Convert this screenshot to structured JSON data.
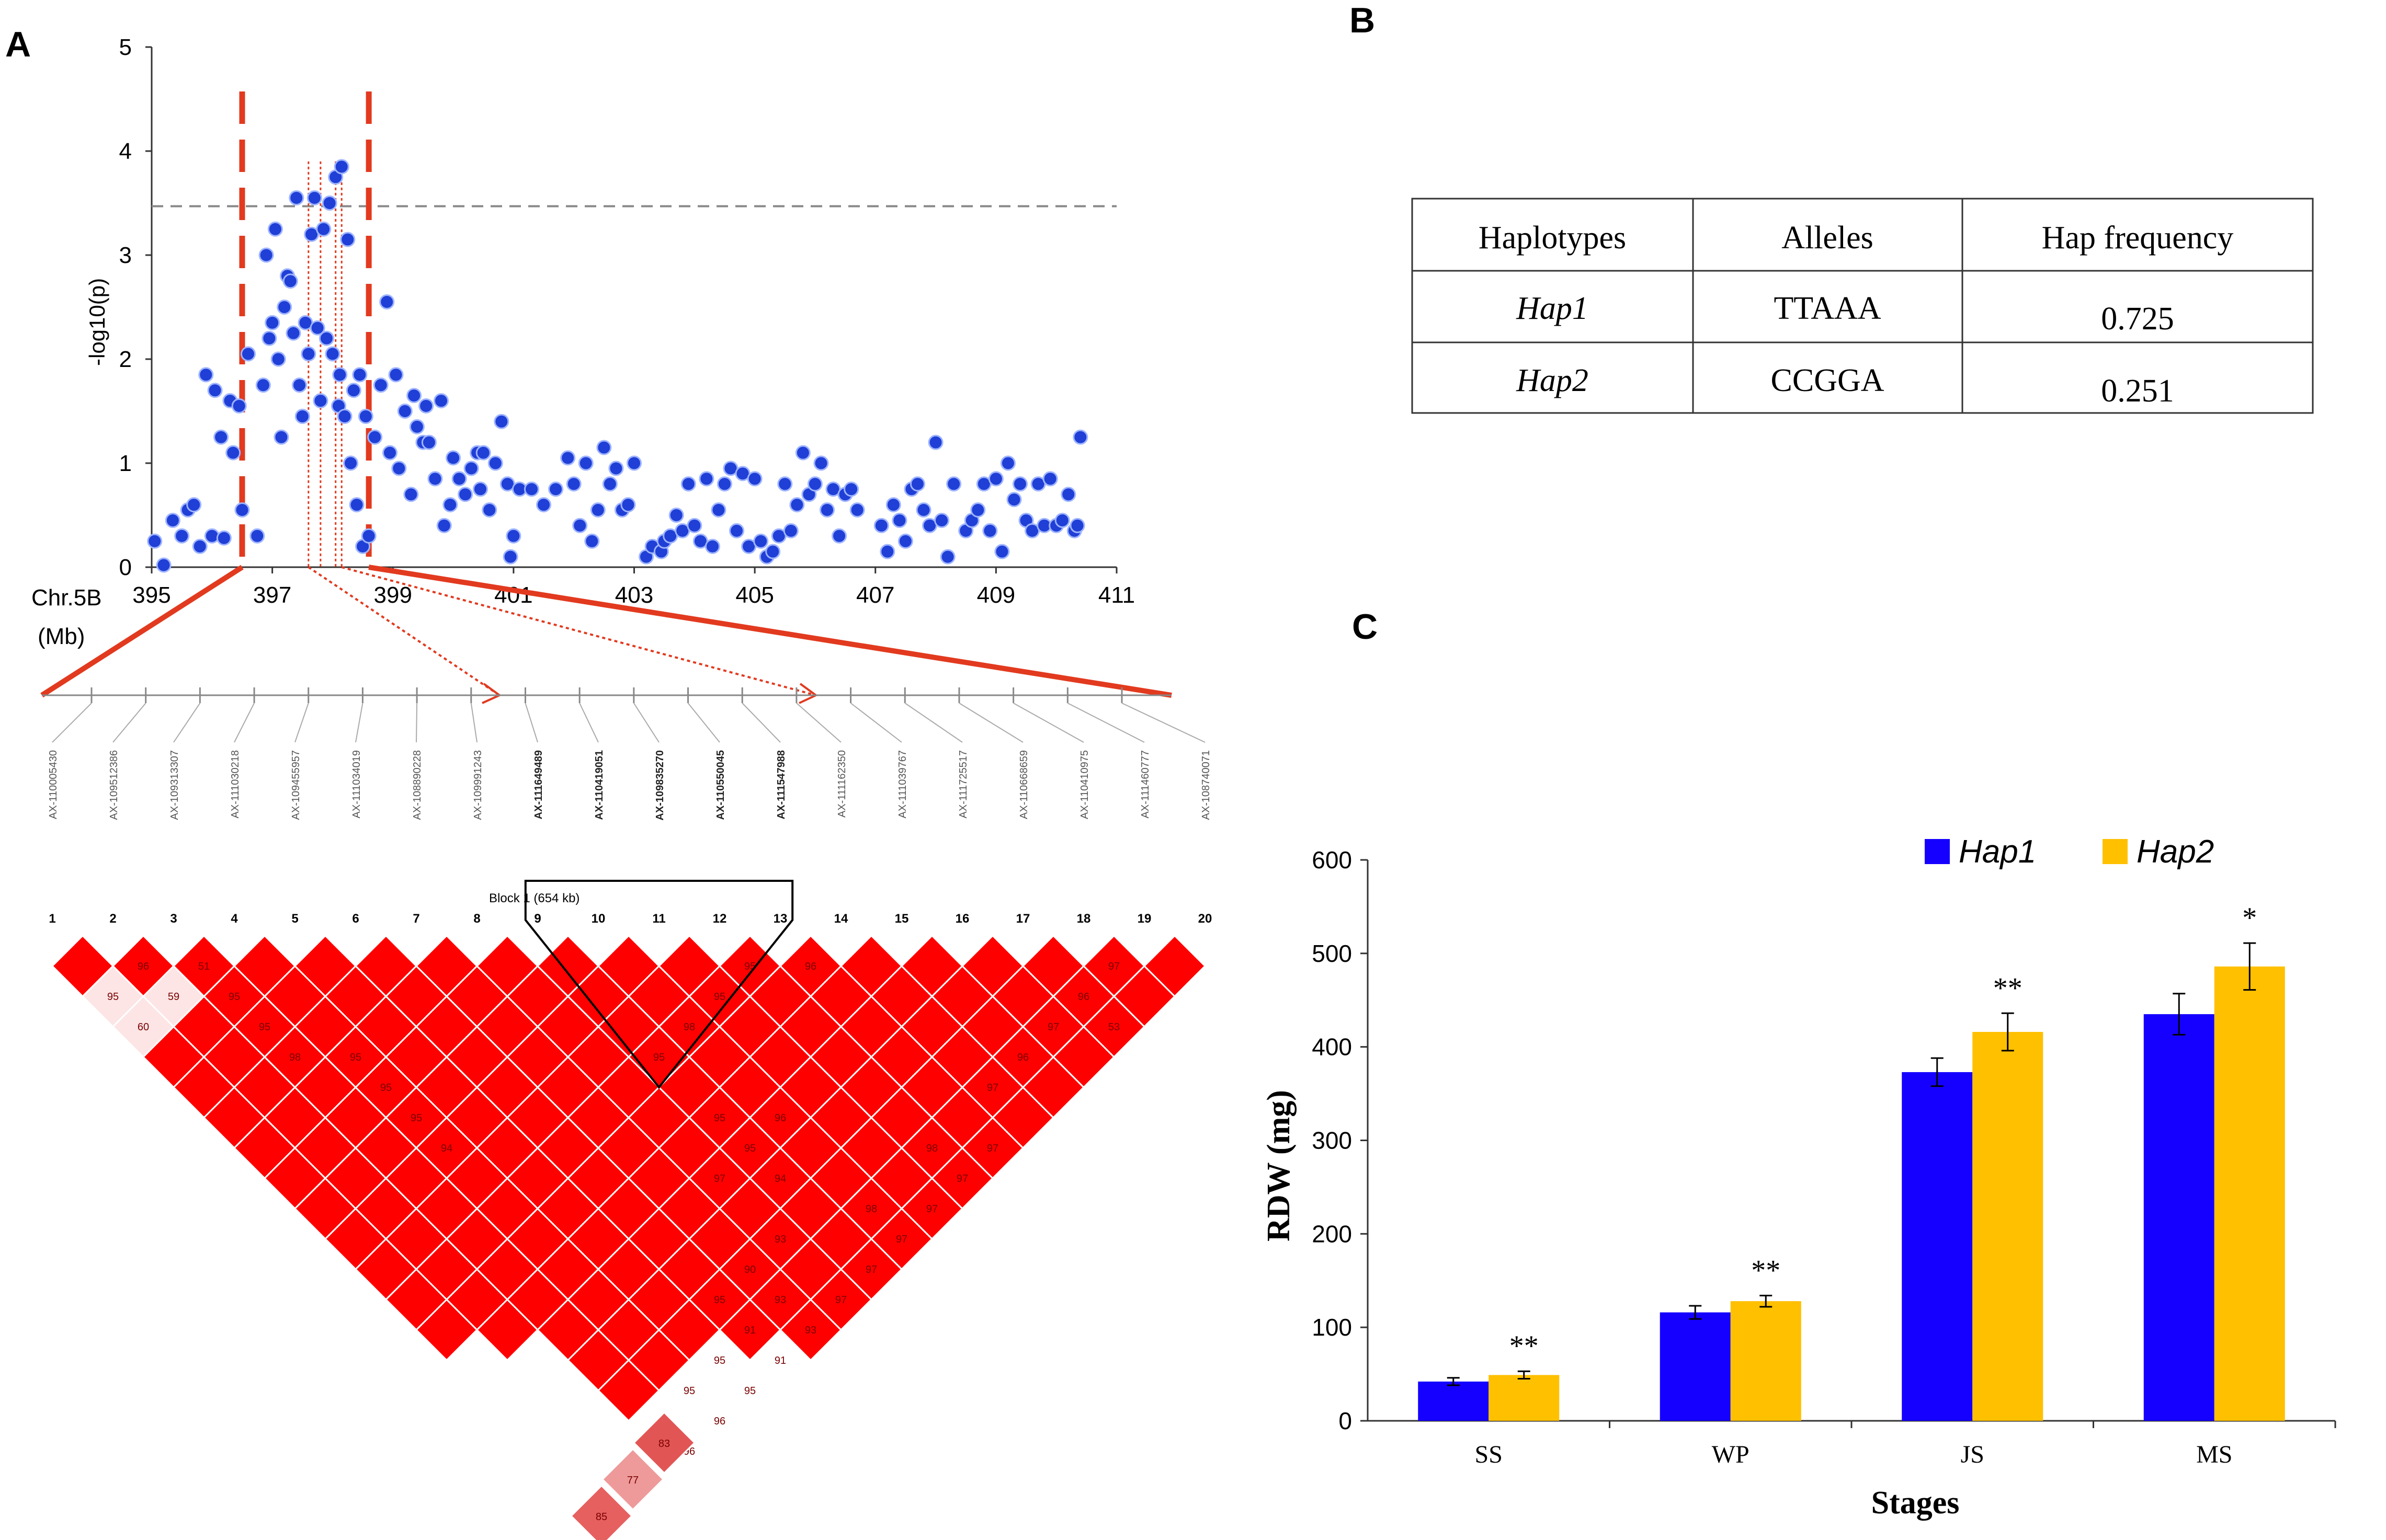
{
  "panels": {
    "a": "A",
    "b": "B",
    "c": "C"
  },
  "colors": {
    "point": "#1f3fd6",
    "red": "#e23a1f",
    "ld_red": "#ff0000",
    "hap1": "#1500ff",
    "hap2": "#ffc000",
    "threshold": "#888888"
  },
  "chart_data": [
    {
      "type": "scatter",
      "title": "",
      "xlabel": "Chr.5B",
      "xlabel_unit": "(Mb)",
      "ylabel": "-log10(p)",
      "xlim": [
        395,
        411
      ],
      "ylim": [
        0,
        5
      ],
      "xticks": [
        "395",
        "397",
        "399",
        "401",
        "403",
        "405",
        "407",
        "409",
        "411"
      ],
      "yticks": [
        "0",
        "1",
        "2",
        "3",
        "4",
        "5"
      ],
      "threshold": 3.47,
      "highlight_interval": [
        396.5,
        398.6
      ],
      "points": [
        [
          395.05,
          0.25
        ],
        [
          395.2,
          0.02
        ],
        [
          395.35,
          0.45
        ],
        [
          395.5,
          0.3
        ],
        [
          395.6,
          0.55
        ],
        [
          395.7,
          0.6
        ],
        [
          395.8,
          0.2
        ],
        [
          395.9,
          1.85
        ],
        [
          396.0,
          0.3
        ],
        [
          396.05,
          1.7
        ],
        [
          396.15,
          1.25
        ],
        [
          396.2,
          0.28
        ],
        [
          396.3,
          1.6
        ],
        [
          396.35,
          1.1
        ],
        [
          396.45,
          1.55
        ],
        [
          396.5,
          0.55
        ],
        [
          396.6,
          2.05
        ],
        [
          396.75,
          0.3
        ],
        [
          396.85,
          1.75
        ],
        [
          396.9,
          3.0
        ],
        [
          396.95,
          2.2
        ],
        [
          397.0,
          2.35
        ],
        [
          397.05,
          3.25
        ],
        [
          397.1,
          2.0
        ],
        [
          397.15,
          1.25
        ],
        [
          397.2,
          2.5
        ],
        [
          397.25,
          2.8
        ],
        [
          397.3,
          2.75
        ],
        [
          397.35,
          2.25
        ],
        [
          397.4,
          3.55
        ],
        [
          397.45,
          1.75
        ],
        [
          397.5,
          1.45
        ],
        [
          397.55,
          2.35
        ],
        [
          397.6,
          2.05
        ],
        [
          397.65,
          3.2
        ],
        [
          397.7,
          3.55
        ],
        [
          397.75,
          2.3
        ],
        [
          397.8,
          1.6
        ],
        [
          397.85,
          3.25
        ],
        [
          397.9,
          2.2
        ],
        [
          397.95,
          3.5
        ],
        [
          398.0,
          2.05
        ],
        [
          398.05,
          3.75
        ],
        [
          398.1,
          1.55
        ],
        [
          398.12,
          1.85
        ],
        [
          398.15,
          3.85
        ],
        [
          398.2,
          1.45
        ],
        [
          398.25,
          3.15
        ],
        [
          398.3,
          1.0
        ],
        [
          398.35,
          1.7
        ],
        [
          398.4,
          0.6
        ],
        [
          398.45,
          1.85
        ],
        [
          398.5,
          0.2
        ],
        [
          398.55,
          1.45
        ],
        [
          398.6,
          0.3
        ],
        [
          398.7,
          1.25
        ],
        [
          398.8,
          1.75
        ],
        [
          398.9,
          2.55
        ],
        [
          398.95,
          1.1
        ],
        [
          399.05,
          1.85
        ],
        [
          399.1,
          0.95
        ],
        [
          399.2,
          1.5
        ],
        [
          399.3,
          0.7
        ],
        [
          399.35,
          1.65
        ],
        [
          399.4,
          1.35
        ],
        [
          399.5,
          1.2
        ],
        [
          399.55,
          1.55
        ],
        [
          399.6,
          1.2
        ],
        [
          399.7,
          0.85
        ],
        [
          399.8,
          1.6
        ],
        [
          399.85,
          0.4
        ],
        [
          399.95,
          0.6
        ],
        [
          400.0,
          1.05
        ],
        [
          400.1,
          0.85
        ],
        [
          400.2,
          0.7
        ],
        [
          400.3,
          0.95
        ],
        [
          400.4,
          1.1
        ],
        [
          400.45,
          0.75
        ],
        [
          400.5,
          1.1
        ],
        [
          400.6,
          0.55
        ],
        [
          400.7,
          1.0
        ],
        [
          400.8,
          1.4
        ],
        [
          400.9,
          0.8
        ],
        [
          400.95,
          0.1
        ],
        [
          401.0,
          0.3
        ],
        [
          401.1,
          0.75
        ],
        [
          401.3,
          0.75
        ],
        [
          401.5,
          0.6
        ],
        [
          401.7,
          0.75
        ],
        [
          401.9,
          1.05
        ],
        [
          402.0,
          0.8
        ],
        [
          402.1,
          0.4
        ],
        [
          402.2,
          1.0
        ],
        [
          402.3,
          0.25
        ],
        [
          402.4,
          0.55
        ],
        [
          402.5,
          1.15
        ],
        [
          402.6,
          0.8
        ],
        [
          402.7,
          0.95
        ],
        [
          402.8,
          0.55
        ],
        [
          402.9,
          0.6
        ],
        [
          403.0,
          1.0
        ],
        [
          403.2,
          0.1
        ],
        [
          403.3,
          0.2
        ],
        [
          403.45,
          0.15
        ],
        [
          403.5,
          0.25
        ],
        [
          403.6,
          0.3
        ],
        [
          403.7,
          0.5
        ],
        [
          403.8,
          0.35
        ],
        [
          403.9,
          0.8
        ],
        [
          404.0,
          0.4
        ],
        [
          404.1,
          0.25
        ],
        [
          404.2,
          0.85
        ],
        [
          404.3,
          0.2
        ],
        [
          404.4,
          0.55
        ],
        [
          404.5,
          0.8
        ],
        [
          404.6,
          0.95
        ],
        [
          404.7,
          0.35
        ],
        [
          404.8,
          0.9
        ],
        [
          404.9,
          0.2
        ],
        [
          405.0,
          0.85
        ],
        [
          405.1,
          0.25
        ],
        [
          405.2,
          0.1
        ],
        [
          405.3,
          0.15
        ],
        [
          405.4,
          0.3
        ],
        [
          405.5,
          0.8
        ],
        [
          405.6,
          0.35
        ],
        [
          405.7,
          0.6
        ],
        [
          405.8,
          1.1
        ],
        [
          405.9,
          0.7
        ],
        [
          406.0,
          0.8
        ],
        [
          406.1,
          1.0
        ],
        [
          406.2,
          0.55
        ],
        [
          406.3,
          0.75
        ],
        [
          406.4,
          0.3
        ],
        [
          406.5,
          0.7
        ],
        [
          406.6,
          0.75
        ],
        [
          406.7,
          0.55
        ],
        [
          407.1,
          0.4
        ],
        [
          407.2,
          0.15
        ],
        [
          407.3,
          0.6
        ],
        [
          407.4,
          0.45
        ],
        [
          407.5,
          0.25
        ],
        [
          407.6,
          0.75
        ],
        [
          407.7,
          0.8
        ],
        [
          407.8,
          0.55
        ],
        [
          407.9,
          0.4
        ],
        [
          408.0,
          1.2
        ],
        [
          408.1,
          0.45
        ],
        [
          408.2,
          0.1
        ],
        [
          408.3,
          0.8
        ],
        [
          408.5,
          0.35
        ],
        [
          408.6,
          0.45
        ],
        [
          408.7,
          0.55
        ],
        [
          408.8,
          0.8
        ],
        [
          408.9,
          0.35
        ],
        [
          409.0,
          0.85
        ],
        [
          409.1,
          0.15
        ],
        [
          409.2,
          1.0
        ],
        [
          409.3,
          0.65
        ],
        [
          409.4,
          0.8
        ],
        [
          409.5,
          0.45
        ],
        [
          409.6,
          0.35
        ],
        [
          409.7,
          0.8
        ],
        [
          409.8,
          0.4
        ],
        [
          409.9,
          0.85
        ],
        [
          410.0,
          0.4
        ],
        [
          410.1,
          0.45
        ],
        [
          410.2,
          0.7
        ],
        [
          410.3,
          0.35
        ],
        [
          410.35,
          0.4
        ],
        [
          410.4,
          1.25
        ]
      ]
    },
    {
      "type": "heatmap",
      "title": "Block 1 (654 kb)",
      "snps": [
        "AX-110005430",
        "AX-109512386",
        "AX-109313307",
        "AX-111030218",
        "AX-109455957",
        "AX-111034019",
        "AX-108890228",
        "AX-109991243",
        "AX-111649489",
        "AX-110419051",
        "AX-109835270",
        "AX-110550045",
        "AX-111547988",
        "AX-111162350",
        "AX-111039767",
        "AX-111725517",
        "AX-110668659",
        "AX-110410975",
        "AX-111460777",
        "AX-108740071"
      ],
      "bold_snps": [
        8,
        9,
        10,
        11,
        12
      ],
      "block_start": 9,
      "block_end": 13,
      "cell_labels": [
        {
          "i": 2,
          "j": 3,
          "v": "96"
        },
        {
          "i": 1,
          "j": 3,
          "v": "95"
        },
        {
          "i": 3,
          "j": 4,
          "v": "51"
        },
        {
          "i": 2,
          "j": 4,
          "v": "59"
        },
        {
          "i": 1,
          "j": 4,
          "v": "60"
        },
        {
          "i": 3,
          "j": 5,
          "v": "95"
        },
        {
          "i": 3,
          "j": 6,
          "v": "95"
        },
        {
          "i": 3,
          "j": 7,
          "v": "98"
        },
        {
          "i": 4,
          "j": 8,
          "v": "95"
        },
        {
          "i": 4,
          "j": 9,
          "v": "95"
        },
        {
          "i": 4,
          "j": 10,
          "v": "95"
        },
        {
          "i": 4,
          "j": 11,
          "v": "94"
        },
        {
          "i": 12,
          "j": 13,
          "v": "95"
        },
        {
          "i": 13,
          "j": 14,
          "v": "96"
        },
        {
          "i": 11,
          "j": 13,
          "v": "95"
        },
        {
          "i": 10,
          "j": 13,
          "v": "98"
        },
        {
          "i": 9,
          "j": 13,
          "v": "95"
        },
        {
          "i": 18,
          "j": 19,
          "v": "97"
        },
        {
          "i": 17,
          "j": 19,
          "v": "96"
        },
        {
          "i": 16,
          "j": 19,
          "v": "97"
        },
        {
          "i": 15,
          "j": 19,
          "v": "96"
        },
        {
          "i": 14,
          "j": 19,
          "v": "97"
        },
        {
          "i": 17,
          "j": 20,
          "v": "53"
        },
        {
          "i": 9,
          "j": 15,
          "v": "95"
        },
        {
          "i": 9,
          "j": 17,
          "v": "94"
        },
        {
          "i": 10,
          "j": 16,
          "v": "96"
        },
        {
          "i": 9,
          "j": 16,
          "v": "95"
        },
        {
          "i": 8,
          "j": 16,
          "v": "97"
        },
        {
          "i": 8,
          "j": 18,
          "v": "93"
        },
        {
          "i": 7,
          "j": 18,
          "v": "90"
        },
        {
          "i": 6,
          "j": 18,
          "v": "95"
        },
        {
          "i": 6,
          "j": 19,
          "v": "91"
        },
        {
          "i": 5,
          "j": 19,
          "v": "95"
        },
        {
          "i": 6,
          "j": 20,
          "v": "91"
        },
        {
          "i": 5,
          "j": 20,
          "v": "95"
        },
        {
          "i": 4,
          "j": 20,
          "v": "96"
        },
        {
          "i": 3,
          "j": 20,
          "v": "96"
        },
        {
          "i": 4,
          "j": 19,
          "v": "95"
        },
        {
          "i": 7,
          "j": 20,
          "v": "93"
        },
        {
          "i": 7,
          "j": 19,
          "v": "93"
        },
        {
          "i": 8,
          "j": 20,
          "v": "97"
        },
        {
          "i": 9,
          "j": 20,
          "v": "97"
        },
        {
          "i": 10,
          "j": 20,
          "v": "97"
        },
        {
          "i": 11,
          "j": 20,
          "v": "97"
        },
        {
          "i": 12,
          "j": 20,
          "v": "97"
        },
        {
          "i": 13,
          "j": 20,
          "v": "97"
        },
        {
          "i": 10,
          "j": 19,
          "v": "98"
        },
        {
          "i": 12,
          "j": 19,
          "v": "98"
        }
      ],
      "extra_cells": [
        {
          "label": "83",
          "shade": "#e25555"
        },
        {
          "label": "77",
          "shade": "#ee9a9a"
        },
        {
          "label": "85",
          "shade": "#e66060"
        }
      ]
    },
    {
      "type": "bar",
      "title": "",
      "legend": [
        "Hap1",
        "Hap2"
      ],
      "legend_position": "top",
      "categories": [
        "SS",
        "WP",
        "JS",
        "MS"
      ],
      "series": [
        {
          "name": "Hap1",
          "values": [
            42,
            116,
            373,
            435
          ],
          "errors": [
            4,
            7,
            15,
            22
          ]
        },
        {
          "name": "Hap2",
          "values": [
            49,
            128,
            416,
            486
          ],
          "errors": [
            4,
            6,
            20,
            25
          ]
        }
      ],
      "significance": [
        "**",
        "**",
        "**",
        "*"
      ],
      "xlabel": "Stages",
      "ylabel": "RDW (mg)",
      "ylim": [
        0,
        600
      ],
      "yticks": [
        "0",
        "100",
        "200",
        "300",
        "400",
        "500",
        "600"
      ]
    }
  ],
  "table_b": {
    "headers": [
      "Haplotypes",
      "Alleles",
      "Hap frequency"
    ],
    "rows": [
      {
        "hap": "Hap1",
        "alleles": "TTAAA",
        "freq": "0.725"
      },
      {
        "hap": "Hap2",
        "alleles": "CCGGA",
        "freq": "0.251"
      }
    ]
  }
}
